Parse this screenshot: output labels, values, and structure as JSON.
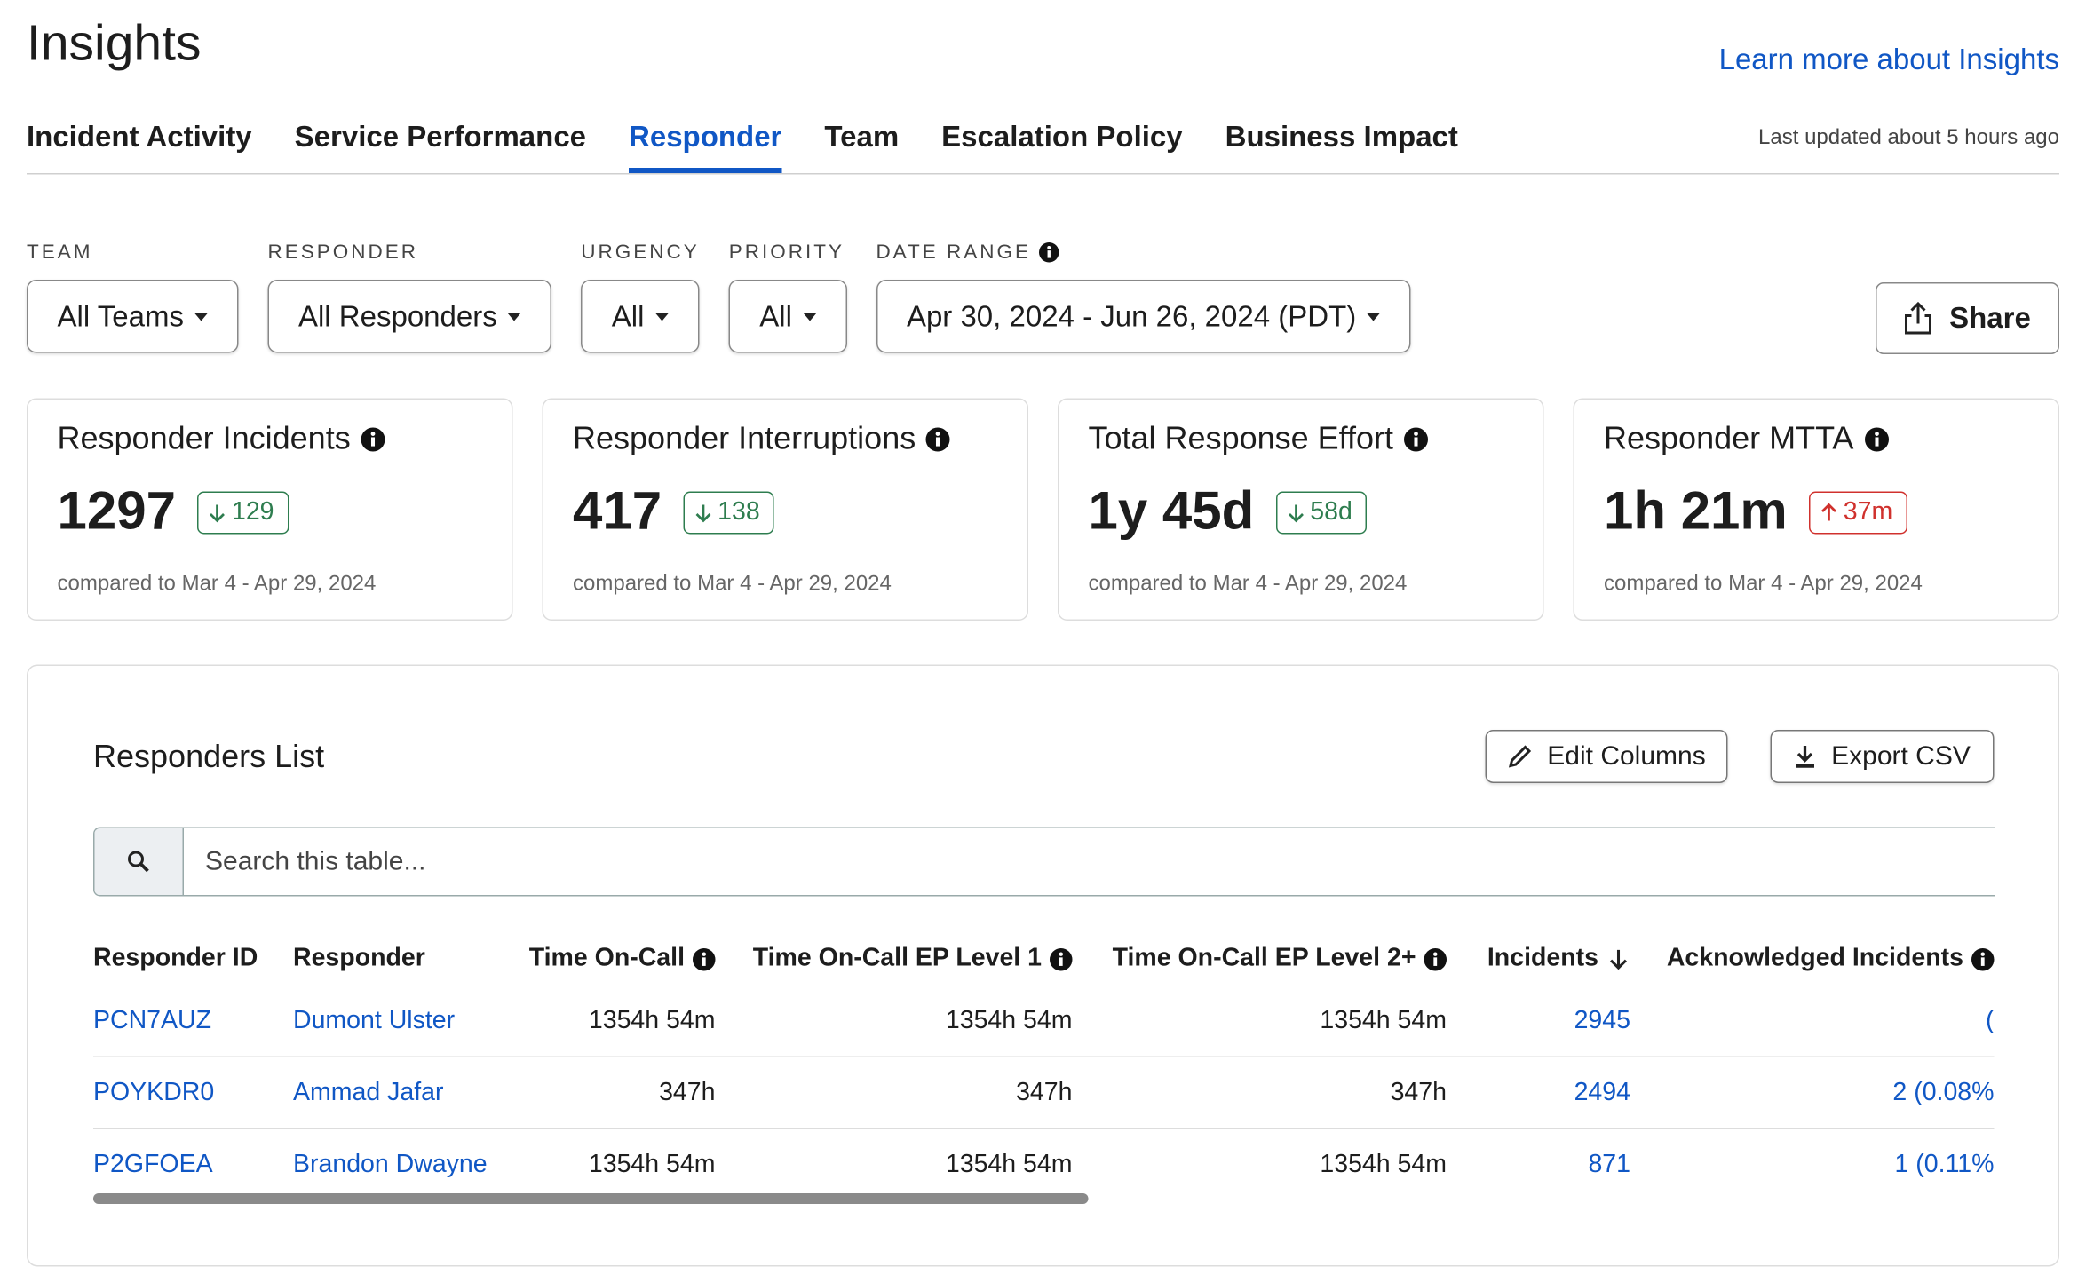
{
  "header": {
    "title": "Insights",
    "link": "Learn more about Insights",
    "last_updated": "Last updated about 5 hours ago"
  },
  "tabs": [
    {
      "label": "Incident Activity",
      "active": false
    },
    {
      "label": "Service Performance",
      "active": false
    },
    {
      "label": "Responder",
      "active": true
    },
    {
      "label": "Team",
      "active": false
    },
    {
      "label": "Escalation Policy",
      "active": false
    },
    {
      "label": "Business Impact",
      "active": false
    }
  ],
  "filters": [
    {
      "label": "TEAM",
      "value": "All Teams",
      "info": false
    },
    {
      "label": "RESPONDER",
      "value": "All Responders",
      "info": false
    },
    {
      "label": "URGENCY",
      "value": "All",
      "info": false
    },
    {
      "label": "PRIORITY",
      "value": "All",
      "info": false
    },
    {
      "label": "DATE RANGE",
      "value": "Apr 30, 2024 - Jun 26, 2024 (PDT)",
      "info": true
    }
  ],
  "share": "Share",
  "metrics": [
    {
      "title": "Responder Incidents",
      "value": 1297,
      "change": 129,
      "direction": "down",
      "comparison": "compared to Mar 4 - Apr 29, 2024"
    },
    {
      "title": "Responder Interruptions",
      "value": 417,
      "change": 138,
      "direction": "down",
      "comparison": "compared to Mar 4 - Apr 29, 2024"
    },
    {
      "title": "Total Response Effort",
      "value": "1y 45d",
      "change": "58d",
      "direction": "down",
      "comparison": "compared to Mar 4 - Apr 29, 2024"
    },
    {
      "title": "Responder MTTA",
      "value": "1h 21m",
      "change": "37m",
      "direction": "up",
      "comparison": "compared to Mar 4 - Apr 29, 2024"
    }
  ],
  "table": {
    "title": "Responders List",
    "buttons": [
      "Edit Columns",
      "Export CSV"
    ],
    "search_placeholder": "Search this table...",
    "columns": [
      {
        "label": "Responder ID",
        "align": "left",
        "info": false
      },
      {
        "label": "Responder",
        "align": "left",
        "info": false
      },
      {
        "label": "Time On-Call",
        "align": "right",
        "info": true
      },
      {
        "label": "Time On-Call EP Level 1",
        "align": "right",
        "info": true
      },
      {
        "label": "Time On-Call EP Level 2+",
        "align": "right",
        "info": true
      },
      {
        "label": "Incidents",
        "align": "right",
        "info": false,
        "sorted": "desc"
      },
      {
        "label": "Acknowledged Incidents",
        "align": "right",
        "info": true
      }
    ],
    "rows": [
      [
        "PCN7AUZ",
        "Dumont Ulster",
        "1354h 54m",
        "1354h 54m",
        "1354h 54m",
        2945,
        "("
      ],
      [
        "POYKDR0",
        "Ammad Jafar",
        "347h",
        "347h",
        "347h",
        2494,
        "2 (0.08%"
      ],
      [
        "P2GFOEA",
        "Brandon Dwayne",
        "1354h 54m",
        "1354h 54m",
        "1354h 54m",
        871,
        "1 (0.11%"
      ]
    ]
  }
}
